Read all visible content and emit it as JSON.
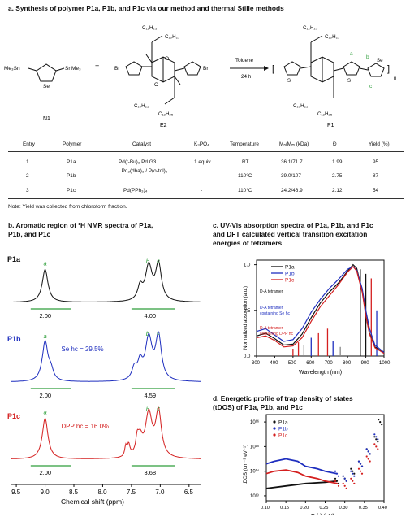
{
  "section_a": {
    "title": "a. Synthesis of polymer P1a, P1b, and P1c via our method and thermal Stille methods",
    "n1": {
      "label": "N1",
      "sub_left": "Me₃Sn",
      "sub_se": "Se",
      "sub_right": "SnMe₃"
    },
    "plus": "+",
    "e2": {
      "label": "E2",
      "br_left": "Br",
      "br_right": "Br",
      "chain_top_a": "C₁₂H₂₅",
      "chain_top_b": "C₁₀H₂₁",
      "chain_bot_a": "C₁₀H₂₁",
      "chain_bot_b": "C₁₂H₂₅",
      "o": "O",
      "n": "N"
    },
    "arrow": {
      "top": "Toluene",
      "bottom": "24 h"
    },
    "p1": {
      "label": "P1",
      "chain_top_a": "C₁₂H₂₅",
      "chain_top_b": "C₁₀H₂₁",
      "chain_bot_a": "C₁₀H₂₁",
      "chain_bot_b": "C₁₂H₂₅",
      "a": "a",
      "b": "b",
      "c": "c",
      "se": "Se",
      "n_sub": "n",
      "s": "S"
    }
  },
  "table": {
    "headers": [
      "Entry",
      "Polymer",
      "Catalyst",
      "K₃PO₄",
      "Temperature",
      "Mₙ/Mₘ (kDa)",
      "Đ",
      "Yield (%)"
    ],
    "rows": [
      [
        "1",
        "P1a",
        "Pd(t-Bu)₃ Pd G3",
        "1 equiv.",
        "RT",
        "36.1/71.7",
        "1.99",
        "95"
      ],
      [
        "2",
        "P1b",
        "Pd₂(dba)₃ / P(o-tol)₃",
        "-",
        "110°C",
        "39.0/107",
        "2.75",
        "87"
      ],
      [
        "3",
        "P1c",
        "Pd(PPh₃)₄",
        "-",
        "110°C",
        "24.2/46.9",
        "2.12",
        "54"
      ]
    ],
    "note": "Note: Yield was collected from chloroform fraction."
  },
  "section_b": {
    "title_line1": "b. Aromatic region of ¹H NMR spectra of P1a,",
    "title_line2": "P1b, and P1c",
    "xlabel": "Chemical shift (ppm)",
    "xticks": [
      "9.5",
      "9.0",
      "8.5",
      "8.0",
      "7.5",
      "7.0",
      "6.5"
    ],
    "spectra": [
      {
        "name": "P1a",
        "color": "#111111",
        "label_a": "a",
        "label_b": "b",
        "label_c": "c",
        "int_left": "2.00",
        "int_right": "4.00",
        "annotation": ""
      },
      {
        "name": "P1b",
        "color": "#1f2fbf",
        "label_a": "a",
        "label_b": "b",
        "label_c": "c",
        "int_left": "2.00",
        "int_right": "4.59",
        "annotation": "Se hc = 29.5%"
      },
      {
        "name": "P1c",
        "color": "#d41f1f",
        "label_a": "a",
        "label_b": "b",
        "label_c": "c",
        "int_left": "2.00",
        "int_right": "3.68",
        "annotation": "DPP hc = 16.0%"
      }
    ],
    "int_color": "#2e9e3a",
    "peak_label_color": "#2e9e3a"
  },
  "section_c": {
    "title_line1": "c. UV-Vis absorption spectra of P1a, P1b, and P1c",
    "title_line2": "and DFT calculated vertical transition excitation",
    "title_line3": "energies of tetramers",
    "ylabel": "Normalized absorption (a.u.)",
    "xlabel": "Wavelength (nm)",
    "xticks": [
      "300",
      "400",
      "500",
      "600",
      "700",
      "800",
      "900",
      "1000"
    ],
    "yticks": [
      "0.0",
      "0.5",
      "1.0"
    ],
    "legend": [
      "P1a",
      "P1b",
      "P1c"
    ],
    "colors": [
      "#111111",
      "#1f2fbf",
      "#d41f1f"
    ],
    "box_labels": [
      "D-A tetramer",
      "D-A tetramer containing Se hc",
      "D-A tetramer containing DPP hc"
    ]
  },
  "section_d": {
    "title_line1": "d. Energetic profile of trap density of states",
    "title_line2": "(tDOS) of P1a, P1b, and P1c",
    "ylabel": "tDOS (cm⁻³ eV⁻¹)",
    "xlabel": "E (-) (eV)",
    "xticks": [
      "0.10",
      "0.15",
      "0.20",
      "0.25",
      "0.30",
      "0.35",
      "0.40"
    ],
    "yticks": [
      "10¹⁶",
      "10¹⁵",
      "10¹⁴",
      "10¹³"
    ],
    "legend": [
      "P1a",
      "P1b",
      "P1c"
    ],
    "colors": [
      "#111111",
      "#1f2fbf",
      "#d41f1f"
    ]
  },
  "chart_data": [
    {
      "type": "line",
      "title": "Aromatic region of 1H NMR spectra of P1a, P1b, and P1c",
      "xlabel": "Chemical shift (ppm)",
      "xlim": [
        9.6,
        6.3
      ],
      "series": [
        {
          "name": "P1a",
          "peaks_ppm": [
            9.0,
            7.2,
            7.05
          ],
          "integrals": {
            "9.0": "2.00",
            "7.1": "4.00"
          }
        },
        {
          "name": "P1b",
          "peaks_ppm": [
            9.0,
            7.2,
            7.05
          ],
          "integrals": {
            "9.0": "2.00",
            "7.1": "4.59"
          }
        },
        {
          "name": "P1c",
          "peaks_ppm": [
            9.0,
            7.2,
            7.05
          ],
          "integrals": {
            "9.0": "2.00",
            "7.1": "3.68"
          }
        }
      ]
    },
    {
      "type": "line",
      "title": "UV-Vis absorption spectra of P1a, P1b, and P1c",
      "xlabel": "Wavelength (nm)",
      "ylabel": "Normalized absorption (a.u.)",
      "xlim": [
        300,
        1000
      ],
      "ylim": [
        0,
        1.05
      ],
      "x": [
        300,
        350,
        400,
        450,
        500,
        550,
        600,
        650,
        700,
        750,
        800,
        830,
        850,
        880,
        900,
        920,
        950,
        1000
      ],
      "series": [
        {
          "name": "P1a",
          "values": [
            0.22,
            0.25,
            0.19,
            0.12,
            0.13,
            0.24,
            0.42,
            0.58,
            0.7,
            0.8,
            0.93,
            1.0,
            0.96,
            0.72,
            0.45,
            0.25,
            0.1,
            0.03
          ]
        },
        {
          "name": "P1b",
          "values": [
            0.27,
            0.3,
            0.23,
            0.16,
            0.18,
            0.3,
            0.48,
            0.62,
            0.74,
            0.84,
            0.95,
            0.98,
            0.94,
            0.74,
            0.5,
            0.3,
            0.12,
            0.04
          ]
        },
        {
          "name": "P1c",
          "values": [
            0.2,
            0.22,
            0.17,
            0.1,
            0.11,
            0.2,
            0.38,
            0.54,
            0.66,
            0.78,
            0.92,
            0.98,
            0.93,
            0.7,
            0.44,
            0.24,
            0.09,
            0.03
          ]
        }
      ]
    },
    {
      "type": "scatter",
      "title": "Energetic profile of trap density of states (tDOS) of P1a, P1b, and P1c",
      "xlabel": "E (-) (eV)",
      "ylabel": "tDOS",
      "xlim": [
        0.1,
        0.4
      ],
      "log_y": true,
      "series": [
        {
          "name": "P1a",
          "x": [
            0.1,
            0.15,
            0.2,
            0.25,
            0.28,
            0.3,
            0.32,
            0.34,
            0.36,
            0.38,
            0.39
          ],
          "log10_values": [
            13.3,
            13.4,
            13.5,
            13.55,
            13.6,
            13.7,
            14.0,
            14.3,
            14.8,
            15.3,
            16.0
          ]
        },
        {
          "name": "P1b",
          "x": [
            0.1,
            0.12,
            0.15,
            0.18,
            0.2,
            0.23,
            0.25,
            0.28,
            0.3,
            0.32,
            0.34,
            0.36,
            0.38
          ],
          "log10_values": [
            14.3,
            14.4,
            14.5,
            14.4,
            14.2,
            14.1,
            14.0,
            13.9,
            13.7,
            13.9,
            14.3,
            14.8,
            15.4
          ]
        },
        {
          "name": "P1c",
          "x": [
            0.1,
            0.12,
            0.15,
            0.18,
            0.2,
            0.23,
            0.25,
            0.28,
            0.3,
            0.32,
            0.34,
            0.36,
            0.38
          ],
          "log10_values": [
            13.9,
            14.0,
            14.05,
            13.95,
            13.8,
            13.7,
            13.6,
            13.5,
            13.4,
            13.6,
            14.0,
            14.5,
            15.0
          ]
        }
      ]
    }
  ]
}
